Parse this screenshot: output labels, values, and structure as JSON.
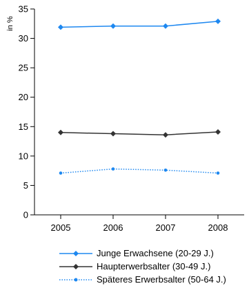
{
  "chart_data": {
    "type": "line",
    "title": "",
    "xlabel": "",
    "ylabel": "in %",
    "categories": [
      "2005",
      "2006",
      "2007",
      "2008"
    ],
    "ylim": [
      0,
      35
    ],
    "yticks": [
      0,
      5,
      10,
      15,
      20,
      25,
      30,
      35
    ],
    "grid": false,
    "legend_position": "bottom",
    "series": [
      {
        "name": "Junge Erwachsene (20-29 J.)",
        "values": [
          31.9,
          32.1,
          32.1,
          32.9
        ],
        "color": "#1e88f0",
        "marker": "diamond",
        "line": "solid"
      },
      {
        "name": "Haupterwerbsalter (30-49 J.)",
        "values": [
          14.0,
          13.8,
          13.6,
          14.1
        ],
        "color": "#333333",
        "marker": "diamond",
        "line": "solid"
      },
      {
        "name": "Späteres Erwerbsalter (50-64 J.)",
        "values": [
          7.1,
          7.8,
          7.6,
          7.1
        ],
        "color": "#1e88f0",
        "marker": "circle",
        "line": "dotted"
      }
    ]
  }
}
